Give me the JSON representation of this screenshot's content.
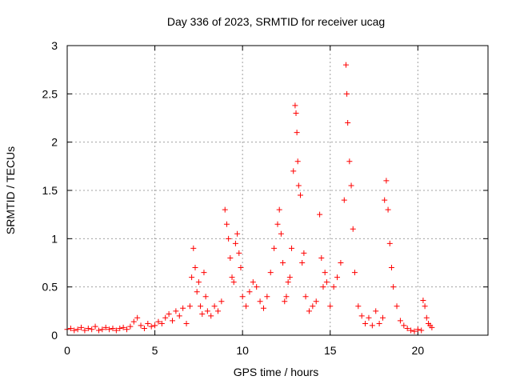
{
  "chart_data": {
    "type": "scatter",
    "title": "Day 336 of 2023, SRMTID for receiver ucag",
    "xlabel": "GPS time / hours",
    "ylabel": "SRMTID / TECUs",
    "xlim": [
      0,
      24
    ],
    "ylim": [
      0,
      3
    ],
    "xticks": [
      0,
      5,
      10,
      15,
      20
    ],
    "yticks": [
      0,
      0.5,
      1,
      1.5,
      2,
      2.5,
      3
    ],
    "xtick_labels": [
      "0",
      "5",
      "10",
      "15",
      "20"
    ],
    "ytick_labels": [
      "0",
      "0.5",
      "1",
      "1.5",
      "2",
      "2.5",
      "3"
    ],
    "grid": true,
    "marker": "+",
    "color": "#ff0000",
    "series": [
      {
        "name": "SRMTID",
        "points": [
          [
            0.0,
            0.06
          ],
          [
            0.2,
            0.07
          ],
          [
            0.4,
            0.05
          ],
          [
            0.6,
            0.06
          ],
          [
            0.8,
            0.08
          ],
          [
            1.0,
            0.05
          ],
          [
            1.2,
            0.07
          ],
          [
            1.4,
            0.06
          ],
          [
            1.6,
            0.09
          ],
          [
            1.8,
            0.05
          ],
          [
            2.0,
            0.06
          ],
          [
            2.2,
            0.08
          ],
          [
            2.4,
            0.06
          ],
          [
            2.6,
            0.07
          ],
          [
            2.8,
            0.05
          ],
          [
            3.0,
            0.07
          ],
          [
            3.2,
            0.08
          ],
          [
            3.4,
            0.06
          ],
          [
            3.6,
            0.09
          ],
          [
            3.8,
            0.14
          ],
          [
            4.0,
            0.18
          ],
          [
            4.2,
            0.1
          ],
          [
            4.4,
            0.07
          ],
          [
            4.6,
            0.12
          ],
          [
            4.8,
            0.09
          ],
          [
            5.0,
            0.1
          ],
          [
            5.2,
            0.14
          ],
          [
            5.4,
            0.12
          ],
          [
            5.6,
            0.18
          ],
          [
            5.8,
            0.22
          ],
          [
            6.0,
            0.15
          ],
          [
            6.2,
            0.25
          ],
          [
            6.4,
            0.2
          ],
          [
            6.6,
            0.28
          ],
          [
            6.8,
            0.12
          ],
          [
            7.0,
            0.3
          ],
          [
            7.1,
            0.6
          ],
          [
            7.2,
            0.9
          ],
          [
            7.3,
            0.7
          ],
          [
            7.4,
            0.45
          ],
          [
            7.5,
            0.55
          ],
          [
            7.6,
            0.3
          ],
          [
            7.7,
            0.22
          ],
          [
            7.8,
            0.65
          ],
          [
            7.9,
            0.4
          ],
          [
            8.0,
            0.25
          ],
          [
            8.2,
            0.2
          ],
          [
            8.4,
            0.3
          ],
          [
            8.6,
            0.25
          ],
          [
            8.8,
            0.35
          ],
          [
            9.0,
            1.3
          ],
          [
            9.1,
            1.15
          ],
          [
            9.2,
            1.0
          ],
          [
            9.3,
            0.8
          ],
          [
            9.4,
            0.6
          ],
          [
            9.5,
            0.55
          ],
          [
            9.6,
            0.95
          ],
          [
            9.7,
            1.05
          ],
          [
            9.8,
            0.85
          ],
          [
            9.9,
            0.7
          ],
          [
            10.0,
            0.4
          ],
          [
            10.2,
            0.3
          ],
          [
            10.4,
            0.45
          ],
          [
            10.6,
            0.55
          ],
          [
            10.8,
            0.5
          ],
          [
            11.0,
            0.35
          ],
          [
            11.2,
            0.28
          ],
          [
            11.4,
            0.4
          ],
          [
            11.6,
            0.65
          ],
          [
            11.8,
            0.9
          ],
          [
            12.0,
            1.15
          ],
          [
            12.1,
            1.3
          ],
          [
            12.2,
            1.05
          ],
          [
            12.3,
            0.75
          ],
          [
            12.4,
            0.35
          ],
          [
            12.5,
            0.4
          ],
          [
            12.6,
            0.55
          ],
          [
            12.7,
            0.6
          ],
          [
            12.8,
            0.9
          ],
          [
            12.9,
            1.7
          ],
          [
            13.0,
            2.38
          ],
          [
            13.05,
            2.3
          ],
          [
            13.1,
            2.1
          ],
          [
            13.15,
            1.8
          ],
          [
            13.2,
            1.55
          ],
          [
            13.3,
            1.45
          ],
          [
            13.4,
            0.75
          ],
          [
            13.5,
            0.85
          ],
          [
            13.6,
            0.4
          ],
          [
            13.8,
            0.25
          ],
          [
            14.0,
            0.3
          ],
          [
            14.2,
            0.35
          ],
          [
            14.4,
            1.25
          ],
          [
            14.5,
            0.8
          ],
          [
            14.6,
            0.5
          ],
          [
            14.7,
            0.65
          ],
          [
            14.8,
            0.55
          ],
          [
            15.0,
            0.3
          ],
          [
            15.2,
            0.5
          ],
          [
            15.4,
            0.6
          ],
          [
            15.6,
            0.75
          ],
          [
            15.8,
            1.4
          ],
          [
            15.9,
            2.8
          ],
          [
            15.95,
            2.5
          ],
          [
            16.0,
            2.2
          ],
          [
            16.1,
            1.8
          ],
          [
            16.2,
            1.55
          ],
          [
            16.3,
            1.1
          ],
          [
            16.4,
            0.65
          ],
          [
            16.6,
            0.3
          ],
          [
            16.8,
            0.2
          ],
          [
            17.0,
            0.12
          ],
          [
            17.2,
            0.18
          ],
          [
            17.4,
            0.1
          ],
          [
            17.6,
            0.25
          ],
          [
            17.8,
            0.12
          ],
          [
            18.0,
            0.18
          ],
          [
            18.1,
            1.4
          ],
          [
            18.2,
            1.6
          ],
          [
            18.3,
            1.3
          ],
          [
            18.4,
            0.95
          ],
          [
            18.5,
            0.7
          ],
          [
            18.6,
            0.5
          ],
          [
            18.8,
            0.3
          ],
          [
            19.0,
            0.15
          ],
          [
            19.2,
            0.1
          ],
          [
            19.4,
            0.07
          ],
          [
            19.6,
            0.05
          ],
          [
            19.8,
            0.04
          ],
          [
            20.0,
            0.06
          ],
          [
            20.2,
            0.05
          ],
          [
            20.3,
            0.36
          ],
          [
            20.4,
            0.3
          ],
          [
            20.5,
            0.18
          ],
          [
            20.6,
            0.12
          ],
          [
            20.7,
            0.1
          ],
          [
            20.8,
            0.08
          ]
        ]
      }
    ]
  }
}
